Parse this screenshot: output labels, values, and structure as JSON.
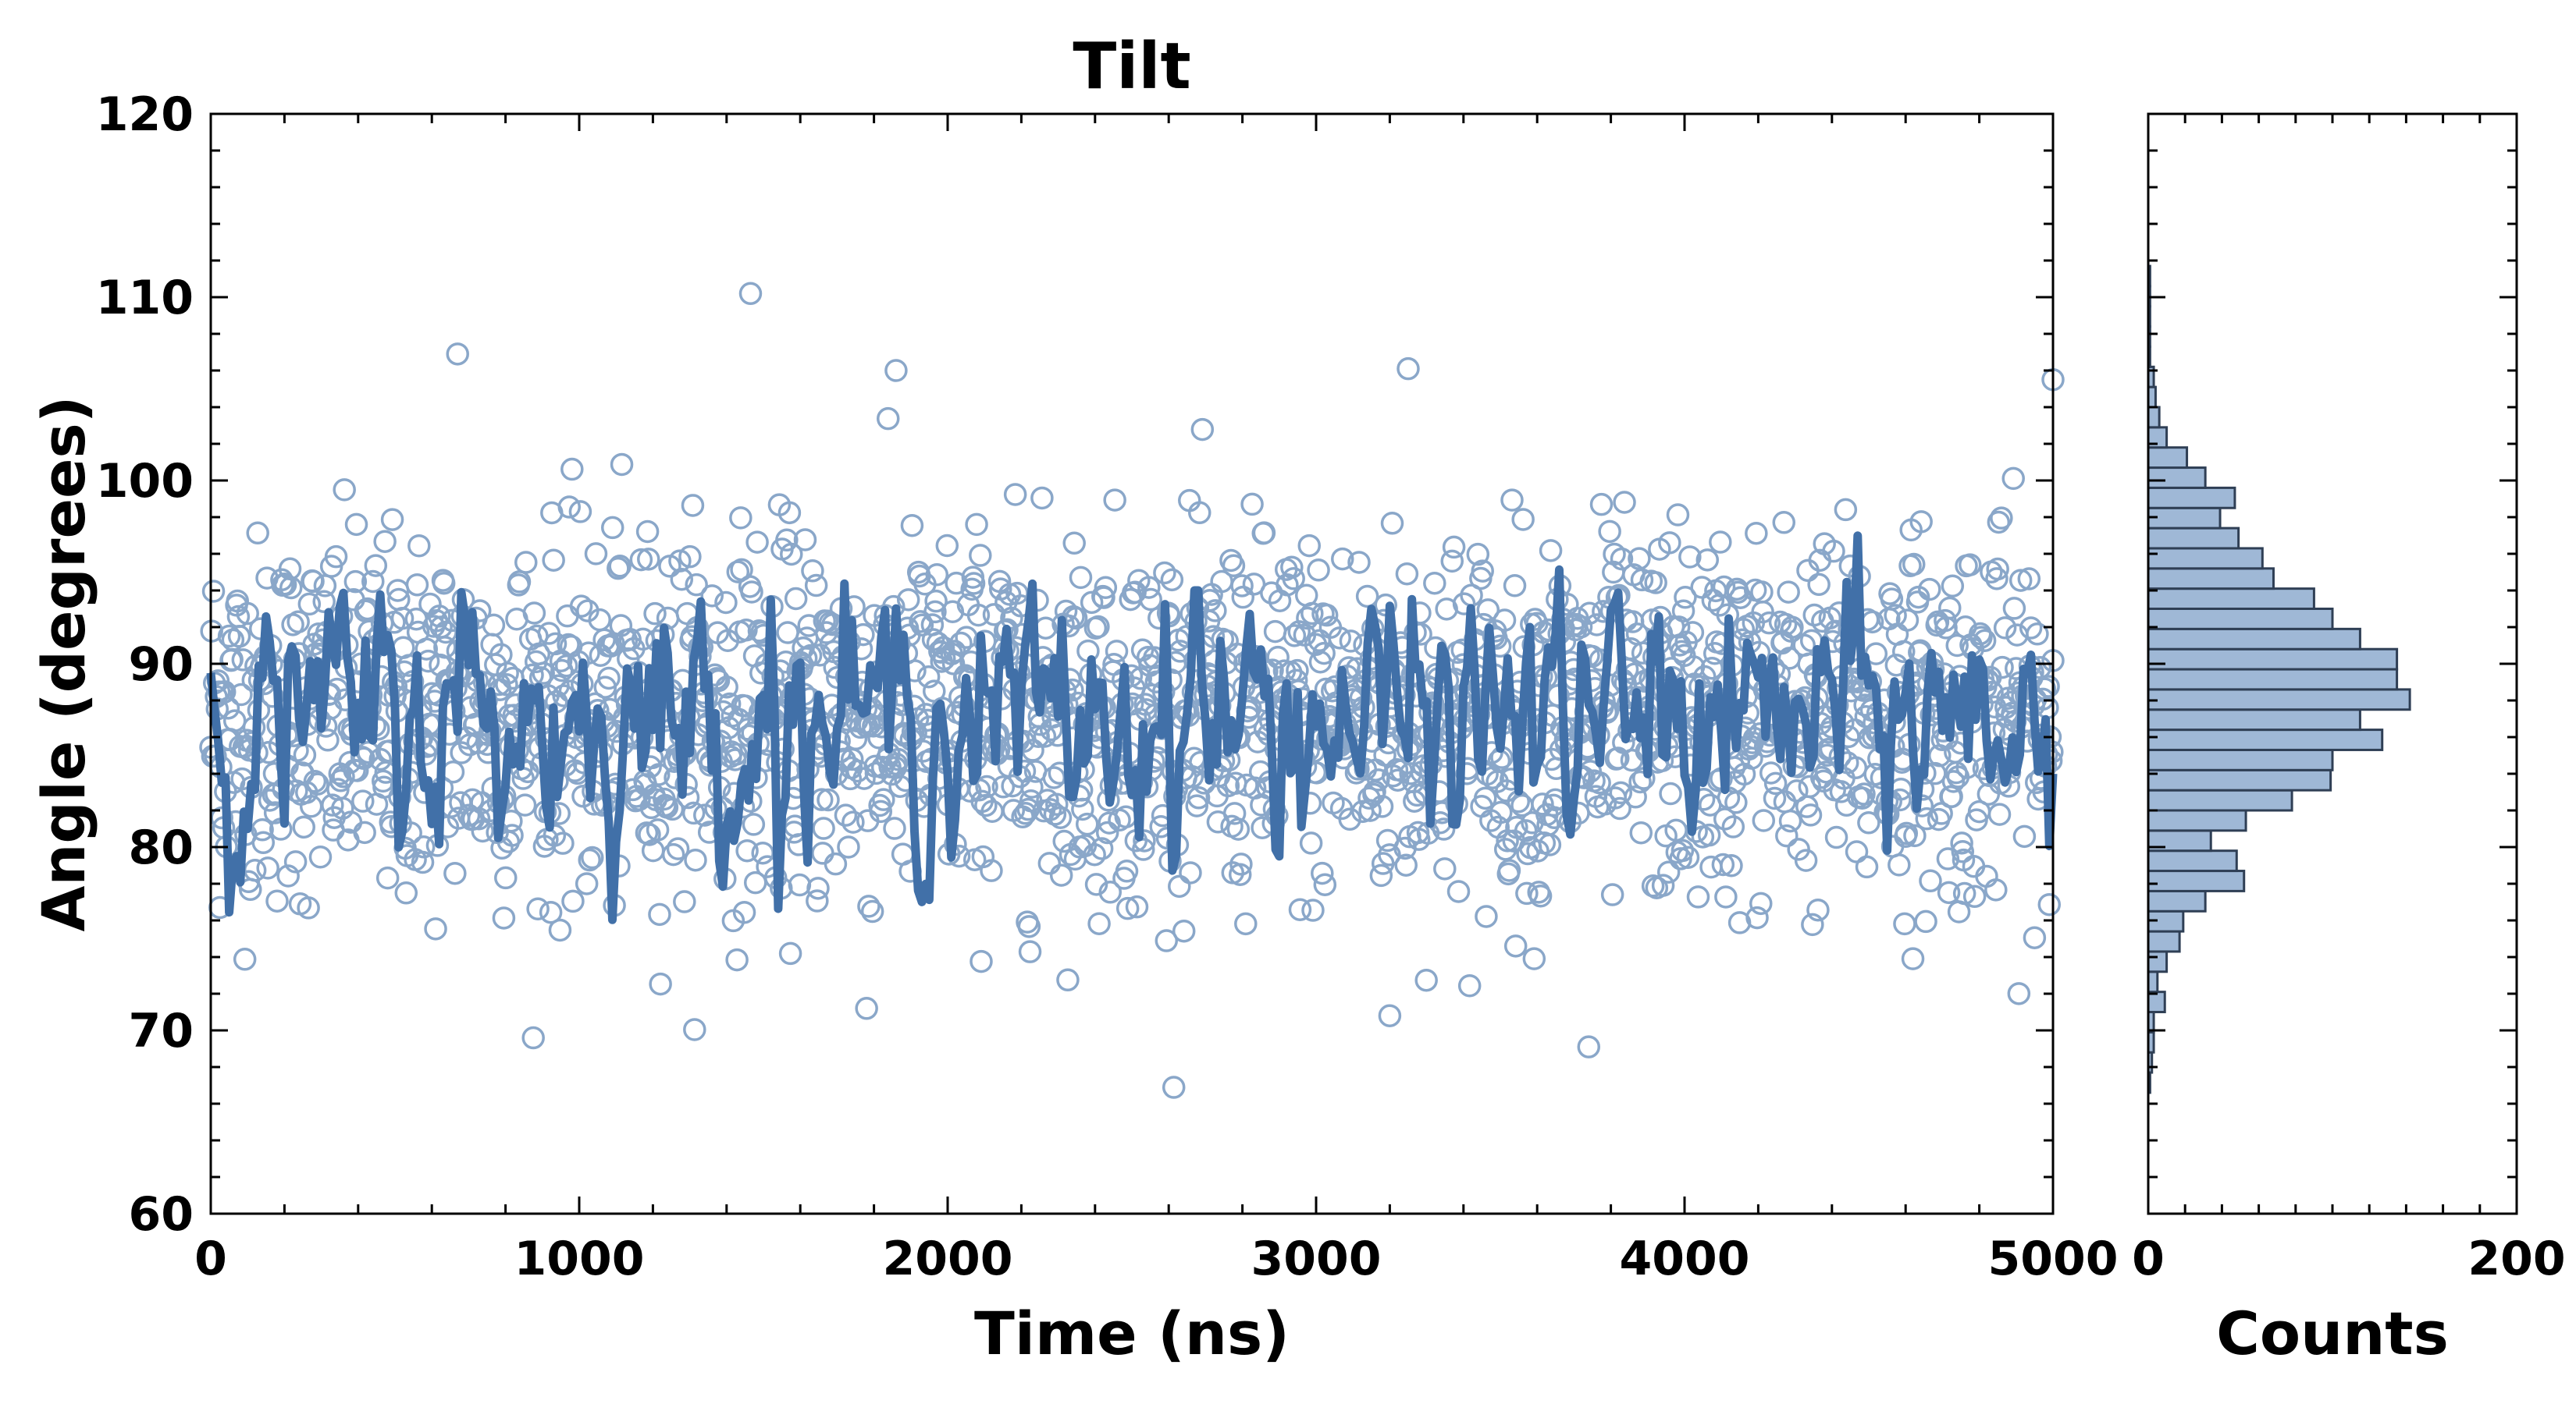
{
  "chart_data": [
    {
      "type": "scatter",
      "title": "Tilt",
      "xlabel": "Time (ns)",
      "ylabel": "Angle (degrees)",
      "xlim": [
        0,
        5000
      ],
      "ylim": [
        60,
        120
      ],
      "xticks": [
        "0",
        "1000",
        "2000",
        "3000",
        "4000",
        "5000"
      ],
      "yticks": [
        "60",
        "70",
        "80",
        "90",
        "100",
        "110",
        "120"
      ],
      "grid": false,
      "series": [
        {
          "kind": "scatter",
          "marker": "open-circle",
          "color": "#8aa7c9",
          "n_points": 2000,
          "mean": 87,
          "std": 5,
          "x_range": [
            0,
            5000
          ],
          "notable_points": [
            [
              1465,
              110.2
            ],
            [
              670,
              106.9
            ],
            [
              1860,
              106
            ],
            [
              3250,
              106.1
            ],
            [
              5000,
              105.5
            ],
            [
              3740,
              69.1
            ],
            [
              3200,
              70.8
            ],
            [
              1780,
              71.2
            ]
          ]
        },
        {
          "kind": "line",
          "color": "#4170a8",
          "x_range": [
            0,
            5000
          ],
          "mean": 87,
          "amplitude": 3.5,
          "notable_points": [
            [
              680,
              93.9
            ],
            [
              1330,
              93.4
            ],
            [
              1520,
              93.5
            ],
            [
              2675,
              94
            ],
            [
              2900,
              79.5
            ],
            [
              3580,
              92
            ],
            [
              5000,
              84
            ]
          ]
        }
      ]
    },
    {
      "type": "bar",
      "orientation": "horizontal",
      "xlabel": "Counts",
      "ylabel": "",
      "xlim": [
        0,
        200
      ],
      "xticks": [
        "0",
        "200"
      ],
      "ylim": [
        60,
        120
      ],
      "bin_width": 1.1,
      "color": "#9fb8d6",
      "edgecolor": "#2f3f55",
      "bins_lower": [
        66.6,
        67.7,
        68.8,
        69.9,
        71.0,
        72.1,
        73.2,
        74.3,
        75.4,
        76.5,
        77.6,
        78.7,
        79.8,
        80.9,
        82.0,
        83.1,
        84.2,
        85.3,
        86.4,
        87.5,
        88.6,
        89.7,
        90.8,
        91.9,
        93.0,
        94.1,
        95.2,
        96.3,
        97.4,
        98.5,
        99.6,
        100.7,
        101.8,
        102.9,
        104.0,
        105.1,
        106.2,
        107.3,
        108.4,
        109.5,
        110.6
      ],
      "values": [
        1,
        2,
        3,
        3,
        9,
        5,
        10,
        17,
        19,
        31,
        52,
        48,
        34,
        53,
        78,
        99,
        100,
        127,
        115,
        142,
        135,
        135,
        115,
        100,
        90,
        68,
        62,
        49,
        39,
        47,
        31,
        21,
        10,
        6,
        4,
        3,
        1,
        1,
        1,
        1,
        1
      ]
    }
  ]
}
